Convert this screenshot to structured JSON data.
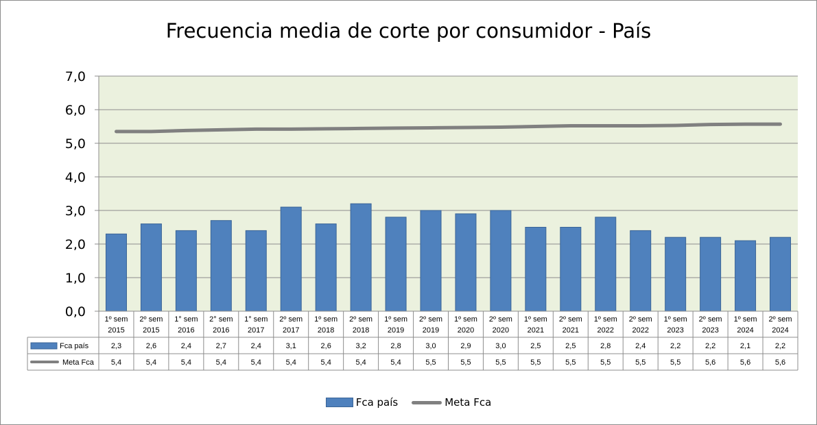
{
  "chart_data": {
    "type": "bar",
    "title": "Frecuencia media de corte por consumidor - País",
    "categories": [
      [
        "1º sem",
        "2015"
      ],
      [
        "2º sem",
        "2015"
      ],
      [
        "1° sem",
        "2016"
      ],
      [
        "2° sem",
        "2016"
      ],
      [
        "1° sem",
        "2017"
      ],
      [
        "2º sem",
        "2017"
      ],
      [
        "1º sem",
        "2018"
      ],
      [
        "2º sem",
        "2018"
      ],
      [
        "1º sem",
        "2019"
      ],
      [
        "2º sem",
        "2019"
      ],
      [
        "1º sem",
        "2020"
      ],
      [
        "2º sem",
        "2020"
      ],
      [
        "1º sem",
        "2021"
      ],
      [
        "2º sem",
        "2021"
      ],
      [
        "1º sem",
        "2022"
      ],
      [
        "2º sem",
        "2022"
      ],
      [
        "1º sem",
        "2023"
      ],
      [
        "2º sem",
        "2023"
      ],
      [
        "1º sem",
        "2024"
      ],
      [
        "2º sem",
        "2024"
      ]
    ],
    "series": [
      {
        "name": "Fca país",
        "kind": "bar",
        "color": "#4f81bd",
        "values": [
          2.3,
          2.6,
          2.4,
          2.7,
          2.4,
          3.1,
          2.6,
          3.2,
          2.8,
          3.0,
          2.9,
          3.0,
          2.5,
          2.5,
          2.8,
          2.4,
          2.2,
          2.2,
          2.1,
          2.2
        ],
        "labels": [
          "2,3",
          "2,6",
          "2,4",
          "2,7",
          "2,4",
          "3,1",
          "2,6",
          "3,2",
          "2,8",
          "3,0",
          "2,9",
          "3,0",
          "2,5",
          "2,5",
          "2,8",
          "2,4",
          "2,2",
          "2,2",
          "2,1",
          "2,2"
        ]
      },
      {
        "name": "Meta Fca",
        "kind": "line",
        "color": "#808080",
        "values": [
          5.35,
          5.35,
          5.38,
          5.4,
          5.42,
          5.42,
          5.43,
          5.44,
          5.45,
          5.46,
          5.47,
          5.48,
          5.5,
          5.52,
          5.52,
          5.52,
          5.53,
          5.56,
          5.57,
          5.57
        ],
        "labels": [
          "5,4",
          "5,4",
          "5,4",
          "5,4",
          "5,4",
          "5,4",
          "5,4",
          "5,4",
          "5,4",
          "5,5",
          "5,5",
          "5,5",
          "5,5",
          "5,5",
          "5,5",
          "5,5",
          "5,5",
          "5,6",
          "5,6",
          "5,6"
        ]
      }
    ],
    "y_ticks": [
      "0,0",
      "1,0",
      "2,0",
      "3,0",
      "4,0",
      "5,0",
      "6,0",
      "7,0"
    ],
    "ylim": [
      0,
      7
    ],
    "grid": true,
    "plot_background": "#ebf1de",
    "legend_position": "bottom",
    "data_table": true
  }
}
